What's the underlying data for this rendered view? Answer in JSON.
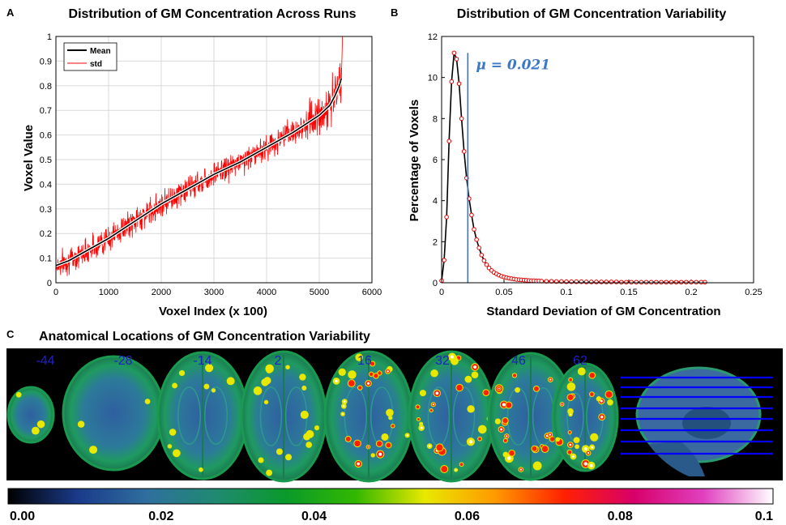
{
  "panels": {
    "A": {
      "letter": "A"
    },
    "B": {
      "letter": "B"
    },
    "C": {
      "letter": "C"
    }
  },
  "chart_data": [
    {
      "id": "A",
      "type": "line",
      "title": "Distribution of GM Concentration Across Runs",
      "xlabel": "Voxel Index (x 100)",
      "ylabel": "Voxel Value",
      "xlim": [
        0,
        6000
      ],
      "ylim": [
        0,
        1
      ],
      "xticks": [
        0,
        1000,
        2000,
        3000,
        4000,
        5000,
        6000
      ],
      "yticks": [
        0,
        0.1,
        0.2,
        0.3,
        0.4,
        0.5,
        0.6,
        0.7,
        0.8,
        0.9,
        1
      ],
      "grid": true,
      "legend_position": "top-left",
      "series": [
        {
          "name": "Mean",
          "color": "#000000",
          "x": [
            0,
            250,
            500,
            1000,
            1500,
            2000,
            2500,
            3000,
            3500,
            4000,
            4500,
            5000,
            5200,
            5300,
            5380,
            5420
          ],
          "y": [
            0.07,
            0.09,
            0.12,
            0.18,
            0.25,
            0.32,
            0.38,
            0.44,
            0.49,
            0.55,
            0.61,
            0.68,
            0.72,
            0.76,
            0.8,
            0.83
          ]
        },
        {
          "name": "std",
          "color": "#ff0000",
          "spread": 0.05,
          "seed": 7,
          "x": [
            0,
            250,
            500,
            1000,
            1500,
            2000,
            2500,
            3000,
            3500,
            4000,
            4500,
            5000,
            5200,
            5300,
            5380,
            5420
          ],
          "y": [
            0.07,
            0.09,
            0.12,
            0.18,
            0.25,
            0.32,
            0.38,
            0.44,
            0.49,
            0.55,
            0.61,
            0.68,
            0.72,
            0.76,
            0.8,
            0.83
          ],
          "tail_x": [
            5420,
            5435,
            5440
          ],
          "tail_y": [
            0.83,
            0.95,
            1.0
          ]
        }
      ]
    },
    {
      "id": "B",
      "type": "line",
      "title": "Distribution of GM Concentration Variability",
      "xlabel": "Standard Deviation of GM Concentration",
      "ylabel": "Percentage of Voxels",
      "xlim": [
        0,
        0.25
      ],
      "ylim": [
        0,
        12
      ],
      "xticks": [
        0,
        0.05,
        0.1,
        0.15,
        0.2,
        0.25
      ],
      "yticks": [
        0,
        2,
        4,
        6,
        8,
        10,
        12
      ],
      "grid": false,
      "annotation": "μ = 0.021",
      "mean_value": 0.021,
      "series": [
        {
          "name": "percentage",
          "line_color": "#000000",
          "marker_color": "#e00000",
          "x": [
            0.0,
            0.002,
            0.004,
            0.006,
            0.008,
            0.01,
            0.012,
            0.014,
            0.016,
            0.018,
            0.02,
            0.022,
            0.024,
            0.026,
            0.028,
            0.03,
            0.032,
            0.034,
            0.036,
            0.038,
            0.04,
            0.042,
            0.044,
            0.046,
            0.048,
            0.05,
            0.052,
            0.054,
            0.056,
            0.058,
            0.06,
            0.062,
            0.064,
            0.066,
            0.068,
            0.07,
            0.072,
            0.074,
            0.076,
            0.078,
            0.08,
            0.084,
            0.088,
            0.092,
            0.096,
            0.1,
            0.104,
            0.108,
            0.112,
            0.116,
            0.12,
            0.124,
            0.128,
            0.132,
            0.136,
            0.14,
            0.144,
            0.148,
            0.152,
            0.156,
            0.16,
            0.164,
            0.168,
            0.172,
            0.176,
            0.18,
            0.184,
            0.188,
            0.192,
            0.196,
            0.2,
            0.204,
            0.208,
            0.211
          ],
          "y": [
            0.1,
            1.1,
            3.2,
            6.9,
            9.8,
            11.2,
            10.9,
            9.7,
            8.0,
            6.4,
            5.1,
            4.1,
            3.3,
            2.6,
            2.1,
            1.7,
            1.35,
            1.08,
            0.88,
            0.72,
            0.6,
            0.5,
            0.43,
            0.37,
            0.32,
            0.28,
            0.25,
            0.22,
            0.2,
            0.18,
            0.16,
            0.15,
            0.14,
            0.13,
            0.12,
            0.11,
            0.1,
            0.1,
            0.09,
            0.09,
            0.08,
            0.07,
            0.07,
            0.06,
            0.06,
            0.05,
            0.05,
            0.05,
            0.05,
            0.04,
            0.04,
            0.04,
            0.04,
            0.04,
            0.04,
            0.04,
            0.03,
            0.03,
            0.03,
            0.03,
            0.03,
            0.03,
            0.03,
            0.03,
            0.03,
            0.03,
            0.03,
            0.03,
            0.03,
            0.03,
            0.03,
            0.03,
            0.03,
            0.03
          ]
        }
      ]
    },
    {
      "id": "C",
      "type": "heatmap",
      "title": "Anatomical Locations of GM Concentration Variability",
      "slice_labels": [
        "-44",
        "-28",
        "-14",
        "2",
        "16",
        "32",
        "46",
        "62"
      ],
      "slice_label_color": "#2020c8",
      "colorbar": {
        "range": [
          0,
          0.1
        ],
        "tick_labels": [
          "0.00",
          "0.02",
          "0.04",
          "0.06",
          "0.08",
          "0.1"
        ],
        "colors": [
          "#000000",
          "#1a3a8a",
          "#2f6f9e",
          "#1f8a70",
          "#0a9a2a",
          "#33b800",
          "#e8e800",
          "#ff9a00",
          "#ff2000",
          "#d8006a",
          "#e040c0",
          "#ffffff"
        ]
      },
      "reference_lines_color": "#0000ff"
    }
  ]
}
